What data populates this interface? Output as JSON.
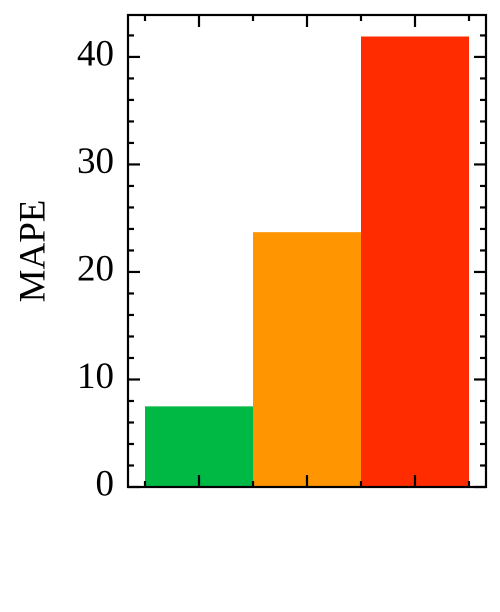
{
  "chart_data": {
    "type": "bar",
    "y_label": "MAPE",
    "categories": [
      null,
      null,
      null
    ],
    "values": [
      7.5,
      23.7,
      41.9
    ],
    "colors": [
      "#00b945",
      "#ff9500",
      "#ff2c00"
    ],
    "ylim": [
      0,
      43.9
    ],
    "yticks": [
      0,
      10,
      20,
      30,
      40
    ]
  }
}
